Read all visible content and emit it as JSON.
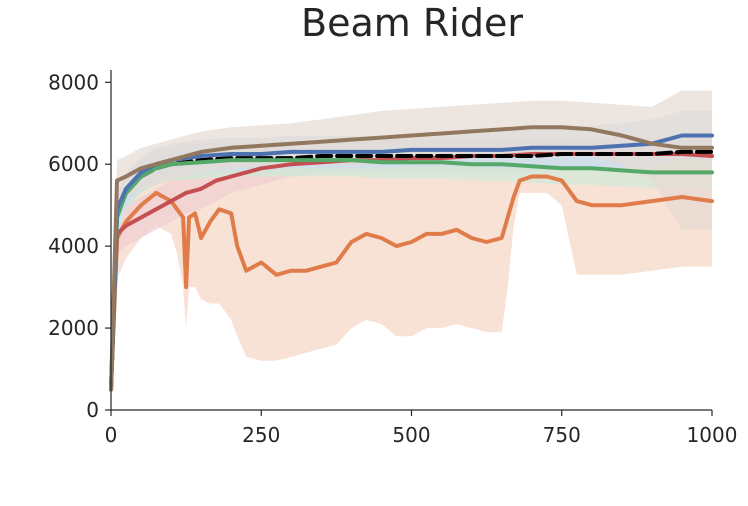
{
  "chart_data": {
    "type": "line",
    "title": "Beam Rider",
    "xlabel": "",
    "ylabel": "",
    "xlim": [
      0,
      1000
    ],
    "ylim": [
      0,
      8300
    ],
    "x_ticks": [
      0,
      250,
      500,
      750,
      1000
    ],
    "y_ticks": [
      0,
      2000,
      4000,
      6000,
      8000
    ],
    "x_tick_labels": [
      "0",
      "250",
      "500",
      "750",
      "1000"
    ],
    "y_tick_labels": [
      "0",
      "2000",
      "4000",
      "6000",
      "8000"
    ],
    "grid": false,
    "legend": "none",
    "series": [
      {
        "color": "#e07b4a",
        "band_color": "#f5d5c5",
        "x": [
          0,
          10,
          25,
          50,
          75,
          100,
          110,
          120,
          125,
          130,
          140,
          150,
          165,
          180,
          200,
          210,
          225,
          250,
          275,
          300,
          325,
          350,
          375,
          400,
          425,
          450,
          475,
          500,
          525,
          550,
          575,
          600,
          625,
          650,
          660,
          670,
          680,
          700,
          725,
          750,
          775,
          800,
          850,
          900,
          950,
          1000
        ],
        "values": [
          500,
          4200,
          4600,
          5000,
          5300,
          5100,
          4900,
          4700,
          3000,
          4700,
          4800,
          4200,
          4600,
          4900,
          4800,
          4000,
          3400,
          3600,
          3300,
          3400,
          3400,
          3500,
          3600,
          4100,
          4300,
          4200,
          4000,
          4100,
          4300,
          4300,
          4400,
          4200,
          4100,
          4200,
          4700,
          5200,
          5600,
          5700,
          5700,
          5600,
          5100,
          5000,
          5000,
          5100,
          5200,
          5100
        ],
        "upper": [
          1500,
          5000,
          5500,
          5800,
          6000,
          6000,
          6000,
          6000,
          6000,
          6000,
          6100,
          6100,
          6100,
          6100,
          6100,
          6100,
          6100,
          6100,
          6100,
          6200,
          6200,
          6200,
          6200,
          6300,
          6300,
          6300,
          6300,
          6400,
          6400,
          6400,
          6400,
          6400,
          6400,
          6400,
          6400,
          6500,
          6500,
          6500,
          6500,
          6500,
          6400,
          6400,
          6400,
          6500,
          6600,
          6600
        ],
        "lower": [
          200,
          3200,
          3700,
          4200,
          4500,
          4300,
          3800,
          3000,
          2000,
          3000,
          3000,
          2700,
          2600,
          2600,
          2200,
          1800,
          1300,
          1200,
          1200,
          1300,
          1400,
          1500,
          1600,
          2000,
          2200,
          2100,
          1800,
          1800,
          2000,
          2000,
          2100,
          2000,
          1900,
          1900,
          3000,
          4500,
          5300,
          5300,
          5300,
          5000,
          3300,
          3300,
          3300,
          3400,
          3500,
          3500
        ]
      },
      {
        "color": "#c44e52",
        "band_color": "#f0cfd0",
        "x": [
          0,
          10,
          25,
          50,
          75,
          100,
          125,
          150,
          175,
          200,
          225,
          250,
          275,
          300,
          350,
          400,
          450,
          500,
          550,
          600,
          650,
          700,
          750,
          800,
          850,
          900,
          950,
          1000
        ],
        "values": [
          500,
          4300,
          4500,
          4700,
          4900,
          5100,
          5300,
          5400,
          5600,
          5700,
          5800,
          5900,
          5950,
          6000,
          6050,
          6100,
          6100,
          6150,
          6150,
          6200,
          6200,
          6250,
          6250,
          6250,
          6250,
          6250,
          6250,
          6200
        ],
        "upper": [
          1500,
          4800,
          5000,
          5200,
          5400,
          5600,
          5800,
          5900,
          6000,
          6100,
          6200,
          6250,
          6300,
          6300,
          6350,
          6400,
          6400,
          6450,
          6450,
          6500,
          6500,
          6550,
          6550,
          6550,
          6550,
          6550,
          6550,
          6500
        ],
        "lower": [
          200,
          3800,
          4000,
          4200,
          4400,
          4600,
          4800,
          4900,
          5100,
          5300,
          5400,
          5500,
          5600,
          5700,
          5750,
          5800,
          5800,
          5850,
          5850,
          5900,
          5900,
          5950,
          5950,
          5950,
          5950,
          5950,
          5950,
          5900
        ]
      },
      {
        "color": "#000000",
        "band_color": "#d9d9d9",
        "dashed": true,
        "x": [
          0,
          10,
          25,
          50,
          75,
          100,
          150,
          200,
          250,
          300,
          350,
          400,
          450,
          500,
          550,
          600,
          650,
          700,
          750,
          800,
          850,
          900,
          950,
          1000
        ],
        "values": [
          500,
          4800,
          5300,
          5700,
          5900,
          6000,
          6100,
          6150,
          6150,
          6150,
          6200,
          6200,
          6200,
          6200,
          6200,
          6200,
          6200,
          6200,
          6250,
          6250,
          6250,
          6250,
          6300,
          6300
        ],
        "upper": [
          1500,
          5200,
          5700,
          6100,
          6300,
          6400,
          6500,
          6550,
          6550,
          6550,
          6600,
          6600,
          6600,
          6600,
          6600,
          6600,
          6600,
          6600,
          6650,
          6650,
          6650,
          6650,
          6700,
          6700
        ],
        "lower": [
          200,
          4400,
          4900,
          5300,
          5500,
          5600,
          5700,
          5750,
          5750,
          5750,
          5800,
          5800,
          5800,
          5800,
          5800,
          5800,
          5800,
          5800,
          5850,
          5850,
          5850,
          5850,
          5900,
          5900
        ]
      },
      {
        "color": "#55a868",
        "band_color": "#d2e9d8",
        "x": [
          0,
          10,
          25,
          50,
          75,
          100,
          150,
          200,
          250,
          300,
          350,
          400,
          450,
          500,
          550,
          600,
          650,
          700,
          750,
          800,
          850,
          900,
          950,
          1000
        ],
        "values": [
          500,
          4700,
          5300,
          5700,
          5900,
          6000,
          6050,
          6100,
          6100,
          6100,
          6100,
          6100,
          6050,
          6050,
          6050,
          6000,
          6000,
          5950,
          5900,
          5900,
          5850,
          5800,
          5800,
          5800
        ],
        "upper": [
          1500,
          5100,
          5700,
          6100,
          6300,
          6400,
          6450,
          6500,
          6500,
          6500,
          6500,
          6500,
          6450,
          6450,
          6450,
          6400,
          6400,
          6350,
          6300,
          6300,
          6250,
          6200,
          6200,
          6200
        ],
        "lower": [
          200,
          4300,
          4900,
          5300,
          5500,
          5600,
          5650,
          5700,
          5700,
          5700,
          5700,
          5700,
          5650,
          5650,
          5650,
          5600,
          5600,
          5550,
          5500,
          5500,
          5450,
          5400,
          5400,
          5400
        ]
      },
      {
        "color": "#4c72b0",
        "band_color": "#d0dcef",
        "x": [
          0,
          10,
          25,
          50,
          75,
          100,
          150,
          200,
          250,
          300,
          350,
          400,
          450,
          500,
          550,
          600,
          650,
          700,
          750,
          800,
          850,
          900,
          950,
          1000
        ],
        "values": [
          500,
          4900,
          5400,
          5800,
          6000,
          6100,
          6200,
          6250,
          6250,
          6300,
          6300,
          6300,
          6300,
          6350,
          6350,
          6350,
          6350,
          6400,
          6400,
          6400,
          6450,
          6500,
          6700,
          6700
        ],
        "upper": [
          1500,
          5300,
          5800,
          6200,
          6400,
          6500,
          6600,
          6650,
          6650,
          6700,
          6700,
          6700,
          6700,
          6750,
          6750,
          6750,
          6800,
          6850,
          6900,
          6950,
          7000,
          7100,
          7300,
          7300
        ],
        "lower": [
          200,
          4500,
          5000,
          5400,
          5600,
          5700,
          5800,
          5850,
          5850,
          5900,
          5900,
          5900,
          5900,
          5950,
          5950,
          5950,
          5900,
          5950,
          5900,
          5850,
          5900,
          5900,
          6100,
          6100
        ]
      },
      {
        "color": "#937860",
        "band_color": "#e6dcd3",
        "x": [
          0,
          10,
          25,
          50,
          75,
          100,
          150,
          200,
          250,
          300,
          350,
          400,
          450,
          500,
          550,
          600,
          650,
          700,
          750,
          800,
          850,
          900,
          950,
          1000
        ],
        "values": [
          500,
          5600,
          5700,
          5900,
          6000,
          6100,
          6300,
          6400,
          6450,
          6500,
          6550,
          6600,
          6650,
          6700,
          6750,
          6800,
          6850,
          6900,
          6900,
          6850,
          6700,
          6500,
          6400,
          6400
        ],
        "upper": [
          1500,
          6100,
          6200,
          6400,
          6500,
          6600,
          6800,
          6900,
          6950,
          7000,
          7100,
          7200,
          7300,
          7350,
          7400,
          7450,
          7500,
          7550,
          7550,
          7500,
          7450,
          7400,
          7800,
          7800
        ],
        "lower": [
          200,
          5100,
          5200,
          5400,
          5500,
          5600,
          5800,
          5900,
          5950,
          6000,
          6000,
          6000,
          6000,
          6050,
          6100,
          6150,
          6200,
          6250,
          6250,
          6200,
          6000,
          5600,
          4400,
          4400
        ]
      }
    ]
  }
}
